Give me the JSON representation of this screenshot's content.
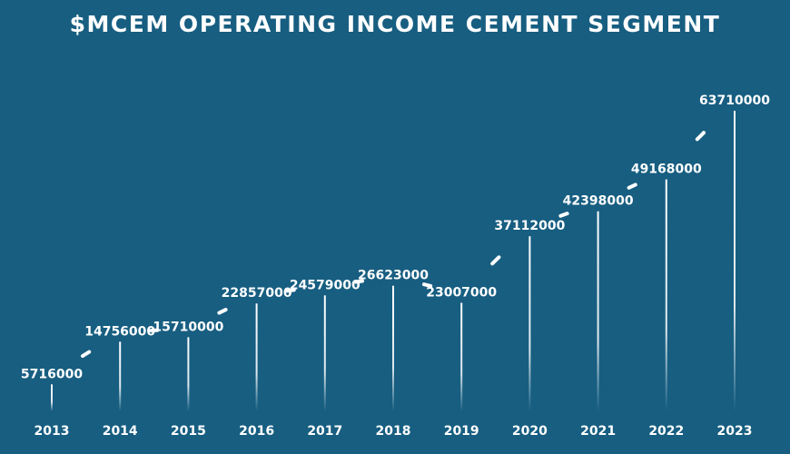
{
  "chart_data": {
    "type": "line",
    "title": "$MCEM OPERATING INCOME CEMENT SEGMENT",
    "categories": [
      "2013",
      "2014",
      "2015",
      "2016",
      "2017",
      "2018",
      "2019",
      "2020",
      "2021",
      "2022",
      "2023"
    ],
    "values": [
      5716000,
      14756000,
      15710000,
      22857000,
      24579000,
      26623000,
      23007000,
      37112000,
      42398000,
      49168000,
      63710000
    ],
    "labels": [
      "5716000",
      "14756000",
      "15710000",
      "22857000",
      "24579000",
      "26623000",
      "23007000",
      "37112000",
      "42398000",
      "49168000",
      "63710000"
    ],
    "xlabel": "",
    "ylabel": "",
    "grid": false,
    "colors": {
      "background": "#175e81",
      "line": "#ffffff",
      "text": "#ffffff"
    }
  }
}
